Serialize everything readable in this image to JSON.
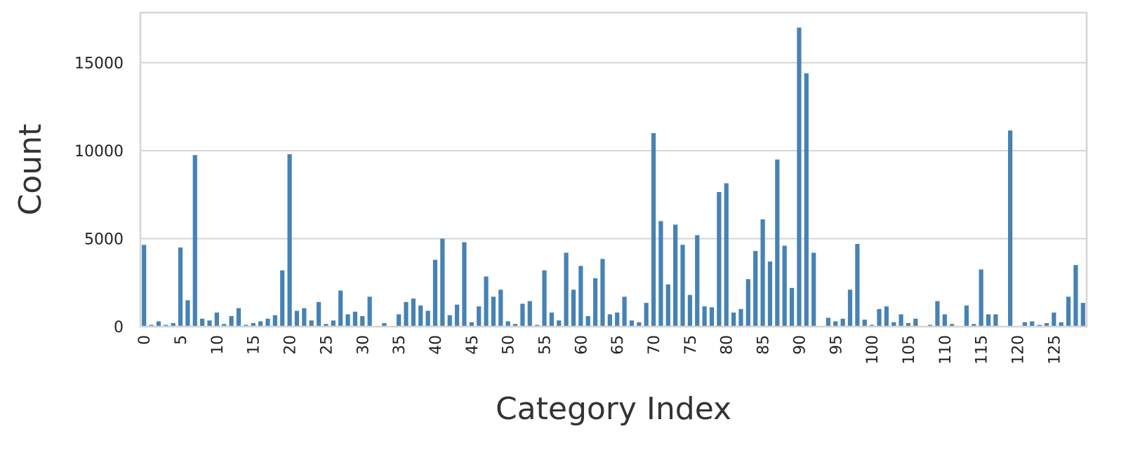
{
  "chart_data": {
    "type": "bar",
    "x_label": "Category Index",
    "y_label": "Count",
    "categories": [
      "0",
      null,
      null,
      null,
      null,
      "5",
      null,
      null,
      null,
      null,
      "10",
      null,
      null,
      null,
      null,
      "15",
      null,
      null,
      null,
      null,
      "20",
      null,
      null,
      null,
      null,
      "25",
      null,
      null,
      null,
      null,
      "30",
      null,
      null,
      null,
      null,
      "35",
      null,
      null,
      null,
      null,
      "40",
      null,
      null,
      null,
      null,
      "45",
      null,
      null,
      null,
      null,
      "50",
      null,
      null,
      null,
      null,
      "55",
      null,
      null,
      null,
      null,
      "60",
      null,
      null,
      null,
      null,
      "65",
      null,
      null,
      null,
      null,
      "70",
      null,
      null,
      null,
      null,
      "75",
      null,
      null,
      null,
      null,
      "80",
      null,
      null,
      null,
      null,
      "85",
      null,
      null,
      null,
      null,
      "90",
      null,
      null,
      null,
      null,
      "95",
      null,
      null,
      null,
      null,
      "100",
      null,
      null,
      null,
      null,
      "105",
      null,
      null,
      null,
      null,
      "110",
      null,
      null,
      null,
      null,
      "115",
      null,
      null,
      null,
      null,
      "120",
      null,
      null,
      null,
      null,
      "125",
      null,
      null,
      null,
      null
    ],
    "values": [
      4650,
      100,
      300,
      100,
      200,
      4500,
      1500,
      9750,
      450,
      350,
      800,
      150,
      600,
      1050,
      100,
      200,
      300,
      450,
      650,
      3200,
      9800,
      900,
      1050,
      350,
      1400,
      150,
      350,
      2050,
      700,
      850,
      600,
      1700,
      0,
      200,
      0,
      700,
      1400,
      1600,
      1200,
      900,
      3800,
      5000,
      650,
      1250,
      4800,
      250,
      1150,
      2850,
      1700,
      2100,
      300,
      150,
      1300,
      1450,
      100,
      3200,
      800,
      350,
      4200,
      2100,
      3450,
      600,
      2750,
      3850,
      700,
      800,
      1700,
      350,
      250,
      1350,
      11000,
      6000,
      2400,
      5800,
      4650,
      1800,
      5200,
      1150,
      1100,
      7650,
      8150,
      800,
      1000,
      2700,
      4300,
      6100,
      3700,
      9500,
      4600,
      2200,
      17000,
      14400,
      4200,
      0,
      500,
      300,
      450,
      2100,
      4700,
      400,
      100,
      1000,
      1150,
      250,
      700,
      200,
      450,
      0,
      100,
      1450,
      700,
      150,
      0,
      1200,
      150,
      3250,
      700,
      700,
      0,
      11150,
      0,
      250,
      300,
      100,
      200,
      800,
      250,
      1700,
      3500,
      1350
    ],
    "color": "#4682b4",
    "ylim": [
      0,
      17850
    ],
    "yticks": [
      0,
      5000,
      10000,
      15000
    ],
    "grid": true
  }
}
